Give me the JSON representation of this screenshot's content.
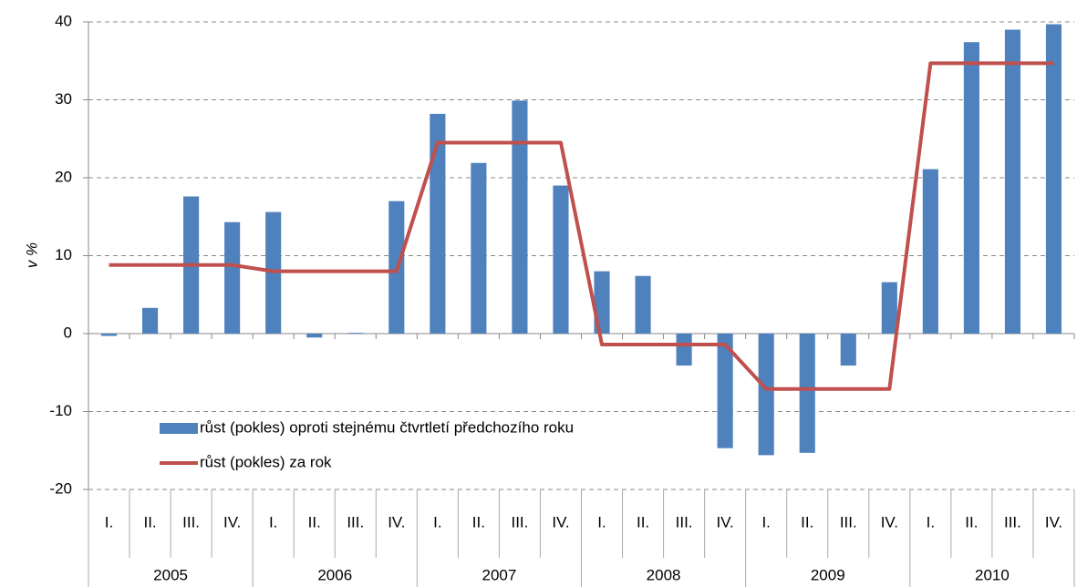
{
  "chart_data": {
    "type": "bar-line",
    "y_label": "v %",
    "categories": [
      "I.",
      "II.",
      "III.",
      "IV.",
      "I.",
      "II.",
      "III.",
      "IV.",
      "I.",
      "II.",
      "III.",
      "IV.",
      "I.",
      "II.",
      "III.",
      "IV.",
      "I.",
      "II.",
      "III.",
      "IV.",
      "I.",
      "II.",
      "III.",
      "IV."
    ],
    "groups": [
      "2005",
      "2006",
      "2007",
      "2008",
      "2009",
      "2010"
    ],
    "series": [
      {
        "name": "růst (pokles) oproti stejnému čtvrtletí předchozího roku",
        "type": "bar",
        "color": "#4f81bd",
        "values": [
          -0.3,
          3.3,
          17.6,
          14.3,
          15.6,
          -0.5,
          0.1,
          17.0,
          28.2,
          21.9,
          29.9,
          19.0,
          8.0,
          7.4,
          -4.1,
          -14.7,
          -15.6,
          -15.3,
          -4.1,
          6.6,
          21.1,
          37.4,
          39.0,
          39.7
        ]
      },
      {
        "name": "růst (pokles) za rok",
        "type": "line",
        "color": "#c0504d",
        "values": [
          8.8,
          8.8,
          8.8,
          8.8,
          8.0,
          8.0,
          8.0,
          8.0,
          24.5,
          24.5,
          24.5,
          24.5,
          -1.4,
          -1.4,
          -1.4,
          -1.4,
          -7.1,
          -7.1,
          -7.1,
          -7.1,
          34.7,
          34.7,
          34.7,
          34.7
        ]
      }
    ],
    "ylim": [
      -20,
      40
    ],
    "yticks": [
      -20,
      -10,
      0,
      10,
      20,
      30,
      40
    ],
    "grid": true
  }
}
